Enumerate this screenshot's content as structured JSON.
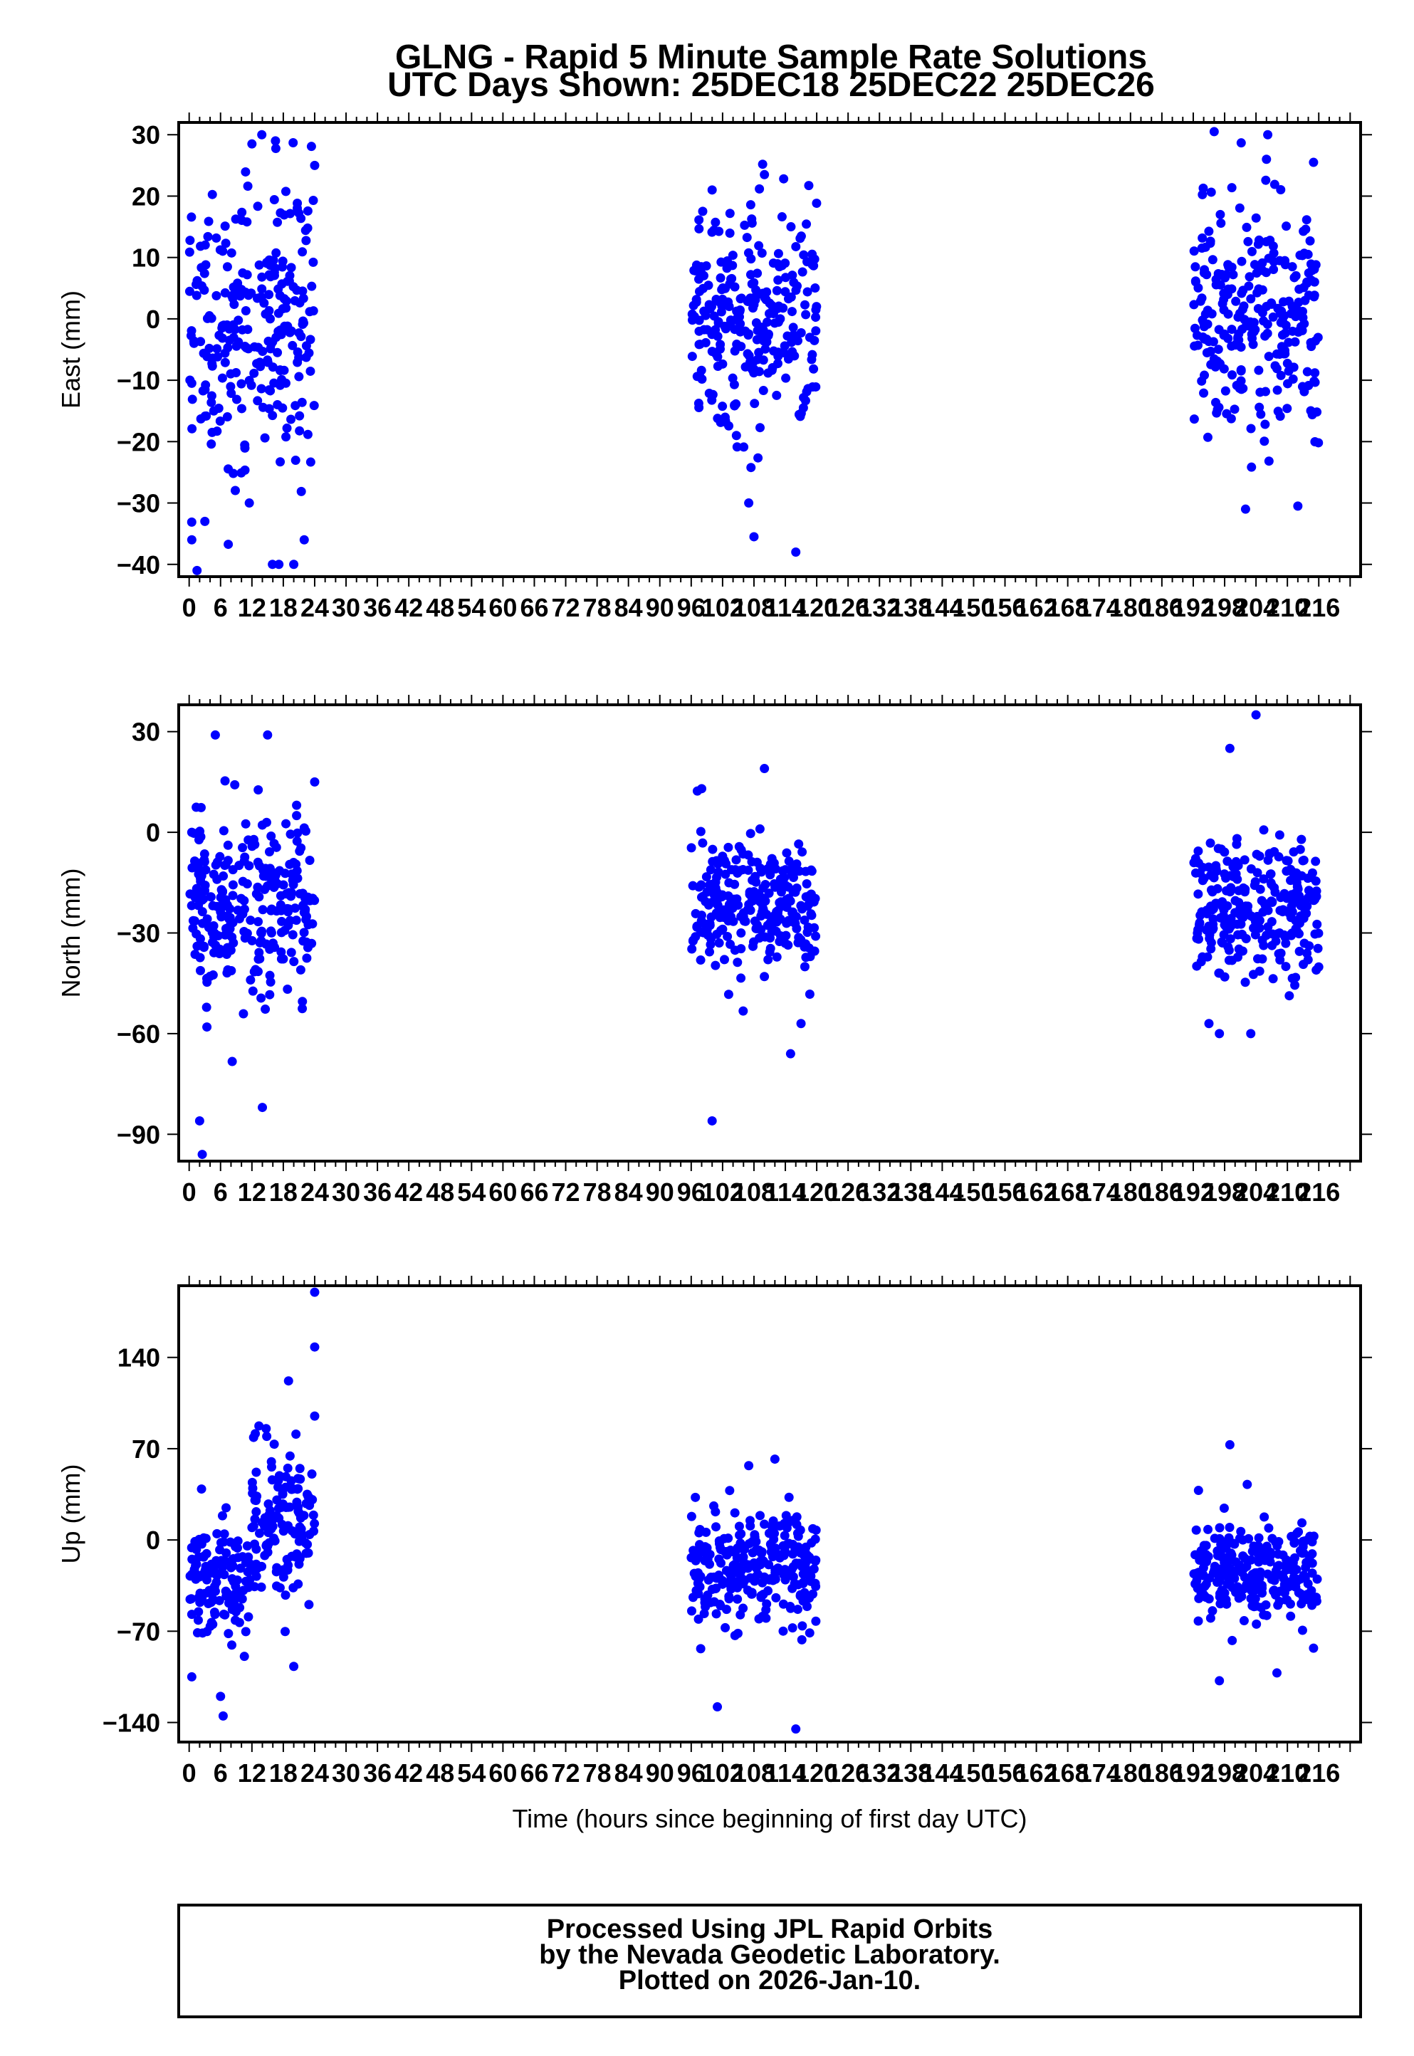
{
  "header": {
    "title": "GLNG - Rapid 5 Minute Sample Rate Solutions",
    "subtitle": "UTC Days Shown:  25DEC18 25DEC22 25DEC26"
  },
  "footer": {
    "lines": [
      "Processed Using JPL Rapid Orbits",
      "by the Nevada Geodetic Laboratory.",
      "Plotted on 2026-Jan-10."
    ]
  },
  "colors": {
    "points": "#0000ff",
    "axes": "#000000"
  },
  "chart_data": [
    {
      "type": "scatter",
      "name": "east",
      "ylabel": "East (mm)",
      "xlabel": "",
      "xlim": [
        -2,
        224
      ],
      "ylim": [
        -42,
        32
      ],
      "xticks": [
        "0",
        "6",
        "12",
        "18",
        "24",
        "30",
        "36",
        "42",
        "48",
        "54",
        "60",
        "66",
        "72",
        "78",
        "84",
        "90",
        "96",
        "102",
        "108",
        "114",
        "120",
        "126",
        "132",
        "138",
        "144",
        "150",
        "156",
        "162",
        "168",
        "174",
        "180",
        "186",
        "192",
        "198",
        "204",
        "210",
        "216"
      ],
      "yticks": [
        30,
        20,
        10,
        0,
        -10,
        -20,
        -30,
        -40
      ],
      "segments": [
        {
          "x_range": [
            0,
            24
          ],
          "mean": 0,
          "spread": 12,
          "sample_points": [
            [
              0.5,
              -36
            ],
            [
              1.5,
              -41
            ],
            [
              3,
              -33
            ],
            [
              11.5,
              -30
            ],
            [
              12,
              28.5
            ],
            [
              16.5,
              29
            ],
            [
              20,
              -40
            ],
            [
              22,
              -36
            ],
            [
              24,
              25
            ]
          ]
        },
        {
          "x_range": [
            96,
            120
          ],
          "mean": 0,
          "spread": 9,
          "sample_points": [
            [
              100,
              21
            ],
            [
              107,
              -30
            ],
            [
              108,
              -35.5
            ],
            [
              110,
              23.5
            ],
            [
              116,
              -38
            ]
          ]
        },
        {
          "x_range": [
            192,
            216
          ],
          "mean": 1,
          "spread": 10,
          "sample_points": [
            [
              196,
              30.5
            ],
            [
              202,
              -31
            ],
            [
              206,
              26
            ],
            [
              212,
              -30.5
            ],
            [
              215,
              25.5
            ]
          ]
        }
      ]
    },
    {
      "type": "scatter",
      "name": "north",
      "ylabel": "North (mm)",
      "xlabel": "",
      "xlim": [
        -2,
        224
      ],
      "ylim": [
        -98,
        38
      ],
      "xticks": [
        "0",
        "6",
        "12",
        "18",
        "24",
        "30",
        "36",
        "42",
        "48",
        "54",
        "60",
        "66",
        "72",
        "78",
        "84",
        "90",
        "96",
        "102",
        "108",
        "114",
        "120",
        "126",
        "132",
        "138",
        "144",
        "150",
        "156",
        "162",
        "168",
        "174",
        "180",
        "186",
        "192",
        "198",
        "204",
        "210",
        "216"
      ],
      "yticks": [
        30,
        0,
        -30,
        -60,
        -90
      ],
      "segments": [
        {
          "x_range": [
            0,
            24
          ],
          "mean": -22,
          "spread": 12,
          "sample_points": [
            [
              0.5,
              0
            ],
            [
              2,
              -86
            ],
            [
              2.5,
              -96
            ],
            [
              5,
              29
            ],
            [
              14,
              -82
            ],
            [
              15,
              29
            ],
            [
              24,
              15
            ]
          ]
        },
        {
          "x_range": [
            96,
            120
          ],
          "mean": -22,
          "spread": 10,
          "sample_points": [
            [
              98,
              13
            ],
            [
              100,
              -86
            ],
            [
              110,
              19
            ],
            [
              115,
              -66
            ],
            [
              117,
              -57
            ]
          ]
        },
        {
          "x_range": [
            192,
            216
          ],
          "mean": -22,
          "spread": 10,
          "sample_points": [
            [
              195,
              -57
            ],
            [
              197,
              -60
            ],
            [
              199,
              25
            ],
            [
              203,
              -60
            ],
            [
              204,
              35
            ]
          ]
        }
      ]
    },
    {
      "type": "scatter",
      "name": "up",
      "ylabel": "Up (mm)",
      "xlabel": "Time (hours since beginning of first day UTC)",
      "xlim": [
        -2,
        224
      ],
      "ylim": [
        -155,
        195
      ],
      "xticks": [
        "0",
        "6",
        "12",
        "18",
        "24",
        "30",
        "36",
        "42",
        "48",
        "54",
        "60",
        "66",
        "72",
        "78",
        "84",
        "90",
        "96",
        "102",
        "108",
        "114",
        "120",
        "126",
        "132",
        "138",
        "144",
        "150",
        "156",
        "162",
        "168",
        "174",
        "180",
        "186",
        "192",
        "198",
        "204",
        "210",
        "216"
      ],
      "yticks": [
        140,
        70,
        0,
        -70,
        -140
      ],
      "segments": [
        {
          "x_range": [
            0,
            12
          ],
          "mean": -25,
          "spread": 20,
          "sample_points": [
            [
              0.5,
              -105
            ],
            [
              6,
              -120
            ],
            [
              6.5,
              -135
            ]
          ]
        },
        {
          "x_range": [
            12,
            24
          ],
          "mean": 10,
          "spread": 30,
          "sample_points": [
            [
              19,
              122
            ],
            [
              20,
              -97
            ],
            [
              24,
              190
            ],
            [
              24,
              148
            ],
            [
              24,
              95
            ]
          ]
        },
        {
          "x_range": [
            96,
            120
          ],
          "mean": -20,
          "spread": 22,
          "sample_points": [
            [
              101,
              -128
            ],
            [
              107,
              57
            ],
            [
              112,
              62
            ],
            [
              116,
              -145
            ]
          ]
        },
        {
          "x_range": [
            192,
            216
          ],
          "mean": -25,
          "spread": 18,
          "sample_points": [
            [
              193,
              38
            ],
            [
              197,
              -108
            ],
            [
              199,
              73
            ],
            [
              208,
              -102
            ],
            [
              215,
              -83
            ]
          ]
        }
      ]
    }
  ]
}
